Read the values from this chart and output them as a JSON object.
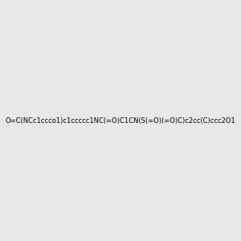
{
  "smiles": "O=C(NCc1ccco1)c1ccccc1NC(=O)C1CN(S(=O)(=O)C)c2cc(C)ccc2O1",
  "image_size": 300,
  "background_color": "#e8e8e8",
  "title": ""
}
